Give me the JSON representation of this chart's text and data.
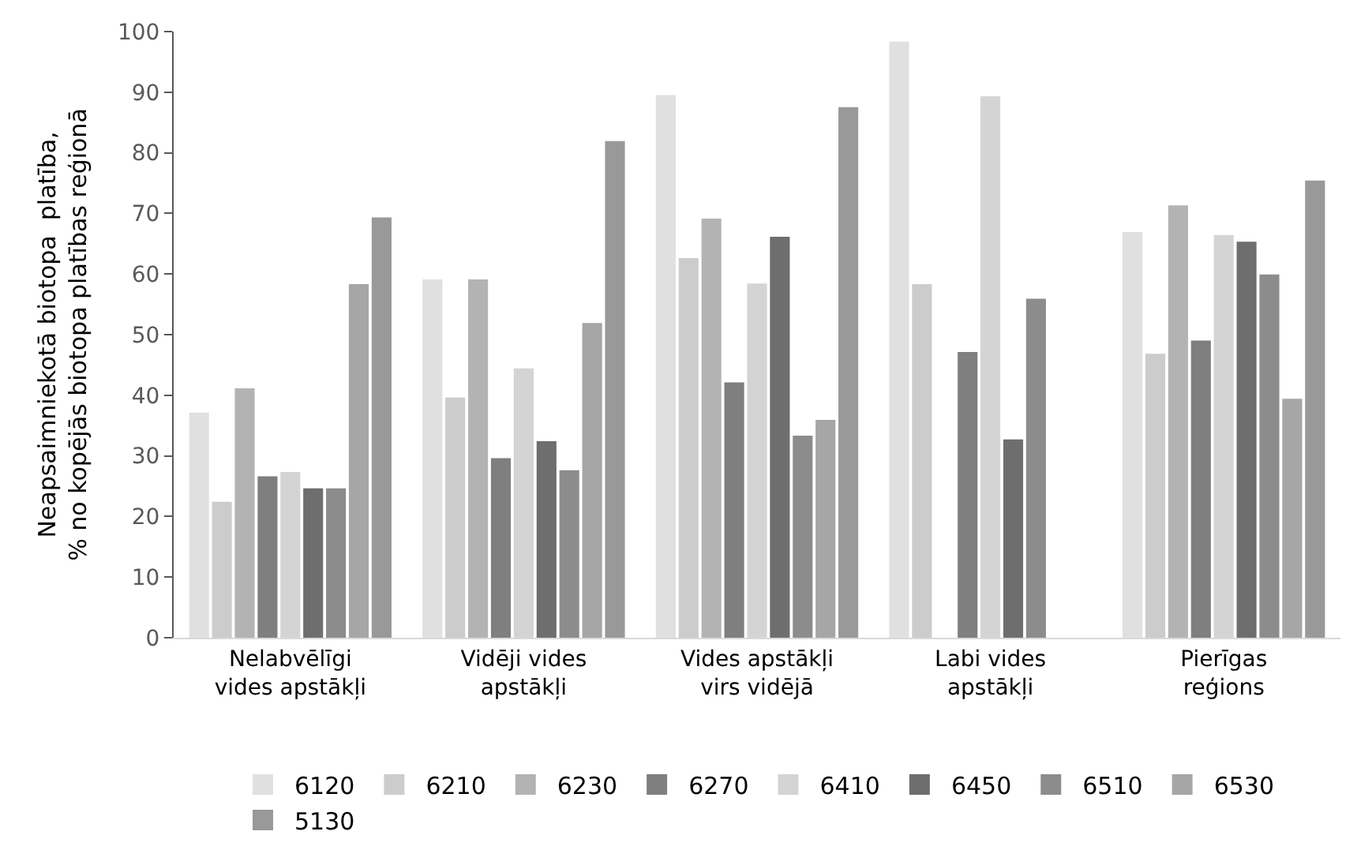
{
  "chart_data": {
    "type": "bar",
    "ylabel": "Neapsaimniekotā biotopa  platība,\n% no kopējās biotopa platības reģionā",
    "categories": [
      "Nelabvēlīgi\nvides apstākļi",
      "Vidēji vides\napstākļi",
      "Vides apstākļi\nvirs vidējā",
      "Labi vides\napstākļi",
      "Pierīgas\nreģions"
    ],
    "series": [
      {
        "name": "6120",
        "color": "#e0e0e0",
        "values": [
          37,
          59,
          89.4,
          98.2,
          66.8
        ]
      },
      {
        "name": "6210",
        "color": "#cccccc",
        "values": [
          22.3,
          39.5,
          62.5,
          58.2,
          46.7
        ]
      },
      {
        "name": "6230",
        "color": "#b3b3b3",
        "values": [
          41,
          59,
          69,
          null,
          71.2
        ]
      },
      {
        "name": "6270",
        "color": "#7f7f7f",
        "values": [
          26.5,
          29.5,
          42,
          47,
          48.9
        ]
      },
      {
        "name": "6410",
        "color": "#d4d4d4",
        "values": [
          27.2,
          44.3,
          58.3,
          89.2,
          66.3
        ]
      },
      {
        "name": "6450",
        "color": "#6e6e6e",
        "values": [
          24.5,
          32.3,
          66,
          32.6,
          65.2
        ]
      },
      {
        "name": "6510",
        "color": "#8c8c8c",
        "values": [
          24.5,
          27.5,
          33.2,
          55.8,
          59.8
        ]
      },
      {
        "name": "6530",
        "color": "#a6a6a6",
        "values": [
          58.2,
          51.8,
          35.8,
          null,
          39.3
        ]
      },
      {
        "name": "5130",
        "color": "#999999",
        "values": [
          69.2,
          81.8,
          87.4,
          null,
          75.3
        ]
      }
    ],
    "ylim": [
      0,
      100
    ],
    "yticks": [
      0,
      10,
      20,
      30,
      40,
      50,
      60,
      70,
      80,
      90,
      100
    ],
    "grid": false,
    "legend": "bottom"
  }
}
